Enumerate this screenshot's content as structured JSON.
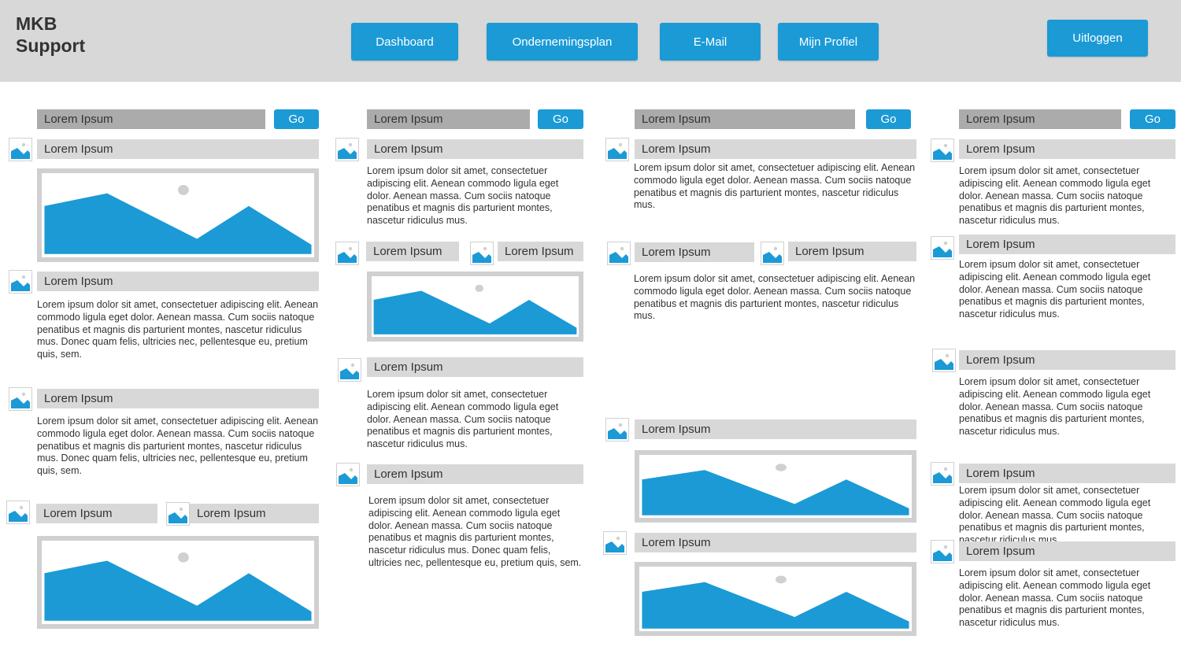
{
  "app": {
    "title": "MKB\nSupport"
  },
  "nav": {
    "dashboard": "Dashboard",
    "plan": "Ondernemingsplan",
    "email": "E-Mail",
    "profile": "Mijn Profiel",
    "logout": "Uitloggen"
  },
  "search": {
    "label": "Lorem Ipsum",
    "go": "Go"
  },
  "label": "Lorem Ipsum",
  "text": {
    "short": "Lorem ipsum dolor sit amet, consectetuer adipiscing elit. Aenean commodo ligula eget dolor. Aenean massa. Cum sociis natoque penatibus et magnis dis parturient montes, nascetur ridiculus mus.",
    "long": "Lorem ipsum dolor sit amet, consectetuer adipiscing elit. Aenean commodo ligula eget dolor. Aenean massa. Cum sociis natoque penatibus et magnis dis parturient montes, nascetur ridiculus mus. Donec quam felis, ultricies nec, pellentesque eu, pretium quis, sem."
  },
  "colors": {
    "accent": "#1b9ad6",
    "header": "#d8d8d8",
    "search": "#ababab",
    "label": "#d8d8d8"
  },
  "icons": {
    "thumb": "image-icon",
    "placeholder": "image-placeholder-icon"
  }
}
